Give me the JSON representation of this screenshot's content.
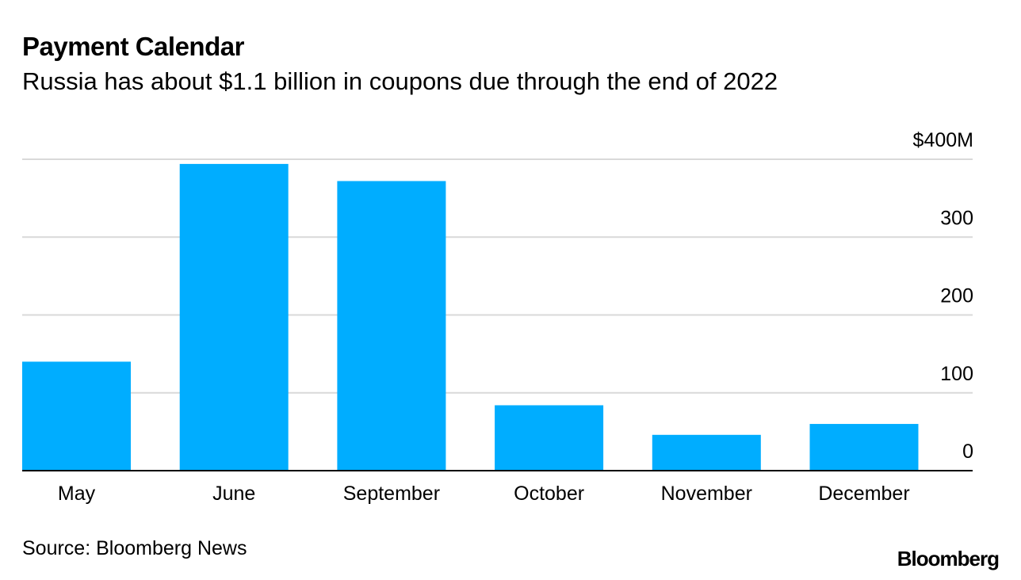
{
  "header": {
    "title": "Payment Calendar",
    "subtitle": "Russia has about $1.1 billion in coupons due through the end of 2022"
  },
  "footer": {
    "source": "Source: Bloomberg News",
    "brand": "Bloomberg"
  },
  "colors": {
    "bar": "#00adff",
    "grid": "#d9d9d9",
    "axis": "#000000"
  },
  "chart_data": {
    "type": "bar",
    "title": "Payment Calendar",
    "subtitle": "Russia has about $1.1 billion in coupons due through the end of 2022",
    "categories": [
      "May",
      "June",
      "September",
      "October",
      "November",
      "December"
    ],
    "values": [
      140,
      394,
      372,
      84,
      46,
      60
    ],
    "xlabel": "",
    "ylabel": "",
    "unit": "$M",
    "ylim": [
      0,
      400
    ],
    "yticks": [
      0,
      100,
      200,
      300,
      400
    ],
    "ytick_labels": [
      "0",
      "100",
      "200",
      "300",
      "$400M"
    ],
    "y_axis_position": "right",
    "grid": true,
    "legend": "none"
  }
}
